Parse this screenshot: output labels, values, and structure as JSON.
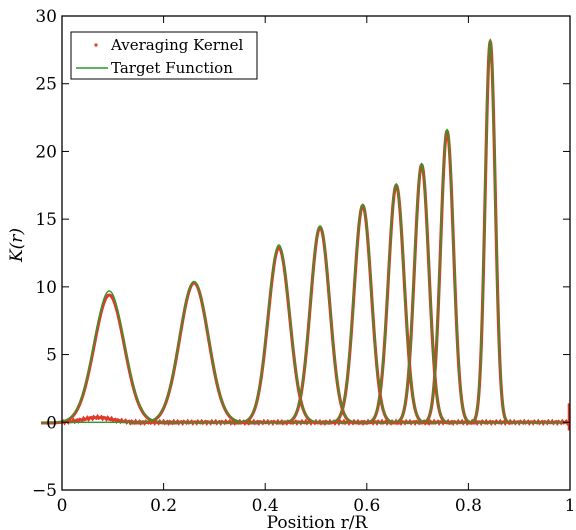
{
  "chart_data": {
    "type": "line",
    "xlabel": "Position r/R",
    "ylabel": "K(r)",
    "xlim": [
      0,
      1
    ],
    "ylim": [
      -5,
      30
    ],
    "xticks": [
      0,
      0.2,
      0.4,
      0.6,
      0.8,
      1
    ],
    "xtick_labels": [
      "0",
      "0.2",
      "0.4",
      "0.6",
      "0.8",
      "1"
    ],
    "yticks": [
      -5,
      0,
      5,
      10,
      15,
      20,
      25,
      30
    ],
    "ytick_labels": [
      "−5",
      "0",
      "5",
      "10",
      "15",
      "20",
      "25",
      "30"
    ],
    "grid": false,
    "legend_position": "top-left",
    "legend": [
      {
        "label": "Averaging Kernel",
        "marker": "dot",
        "color": "#e03a2a"
      },
      {
        "label": "Target Function",
        "marker": "line",
        "color": "#2a9a2a"
      }
    ],
    "colors": {
      "kernel": "#e03a2a",
      "target": "#2a9a2a"
    },
    "peaks": [
      {
        "center": 0.093,
        "target_height": 9.7,
        "kernel_height": 9.4,
        "width": 0.042
      },
      {
        "center": 0.26,
        "target_height": 10.4,
        "kernel_height": 10.3,
        "width": 0.04
      },
      {
        "center": 0.427,
        "target_height": 13.1,
        "kernel_height": 12.9,
        "width": 0.03
      },
      {
        "center": 0.508,
        "target_height": 14.5,
        "kernel_height": 14.4,
        "width": 0.027
      },
      {
        "center": 0.592,
        "target_height": 16.1,
        "kernel_height": 16.0,
        "width": 0.024
      },
      {
        "center": 0.658,
        "target_height": 17.6,
        "kernel_height": 17.5,
        "width": 0.022
      },
      {
        "center": 0.708,
        "target_height": 19.1,
        "kernel_height": 19.0,
        "width": 0.02
      },
      {
        "center": 0.758,
        "target_height": 21.6,
        "kernel_height": 21.5,
        "width": 0.018
      },
      {
        "center": 0.843,
        "target_height": 28.2,
        "kernel_height": 28.1,
        "width": 0.014
      }
    ]
  }
}
